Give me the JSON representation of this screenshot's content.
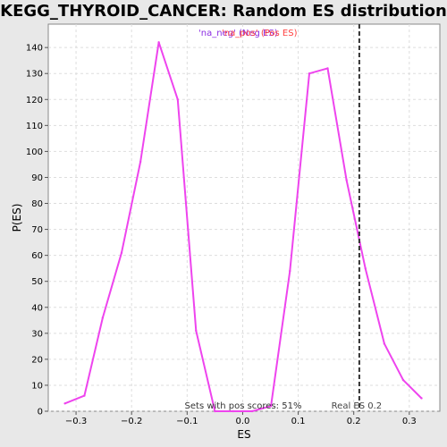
{
  "chart_data": {
    "type": "line",
    "title": "KEGG_THYROID_CANCER: Random ES distribution",
    "xlabel": "ES",
    "ylabel": "P(ES)",
    "xlim": [
      -0.35,
      0.355
    ],
    "ylim": [
      0,
      149
    ],
    "x_ticks": [
      -0.3,
      -0.2,
      -0.1,
      0.0,
      0.1,
      0.2,
      0.3
    ],
    "x_tick_labels": [
      "−0.3",
      "−0.2",
      "−0.1",
      "0.0",
      "0.1",
      "0.2",
      "0.3"
    ],
    "y_ticks": [
      0,
      10,
      20,
      30,
      40,
      50,
      60,
      70,
      80,
      90,
      100,
      110,
      120,
      130,
      140
    ],
    "grid": true,
    "legend_labels": [
      "'na_neg' (Neg ES)",
      "'na_pos' (Pos ES)"
    ],
    "legend_colors": [
      "#8a2be2",
      "#ff4040"
    ],
    "series": [
      {
        "color": "#ee44ee",
        "x": [
          -0.32,
          -0.285,
          -0.252,
          -0.218,
          -0.184,
          -0.151,
          -0.117,
          -0.084,
          -0.05,
          -0.017,
          0.017,
          0.051,
          0.085,
          0.12,
          0.153,
          0.187,
          0.221,
          0.255,
          0.289,
          0.322
        ],
        "y": [
          3,
          6,
          36,
          61,
          96,
          142,
          120,
          31,
          0,
          0,
          0,
          2,
          54,
          130,
          132,
          89,
          55,
          26,
          12,
          5
        ]
      }
    ],
    "real_es": {
      "x": 0.21,
      "label": "Real ES 0.2"
    },
    "annotation": "Sets with pos scores: 51%"
  }
}
